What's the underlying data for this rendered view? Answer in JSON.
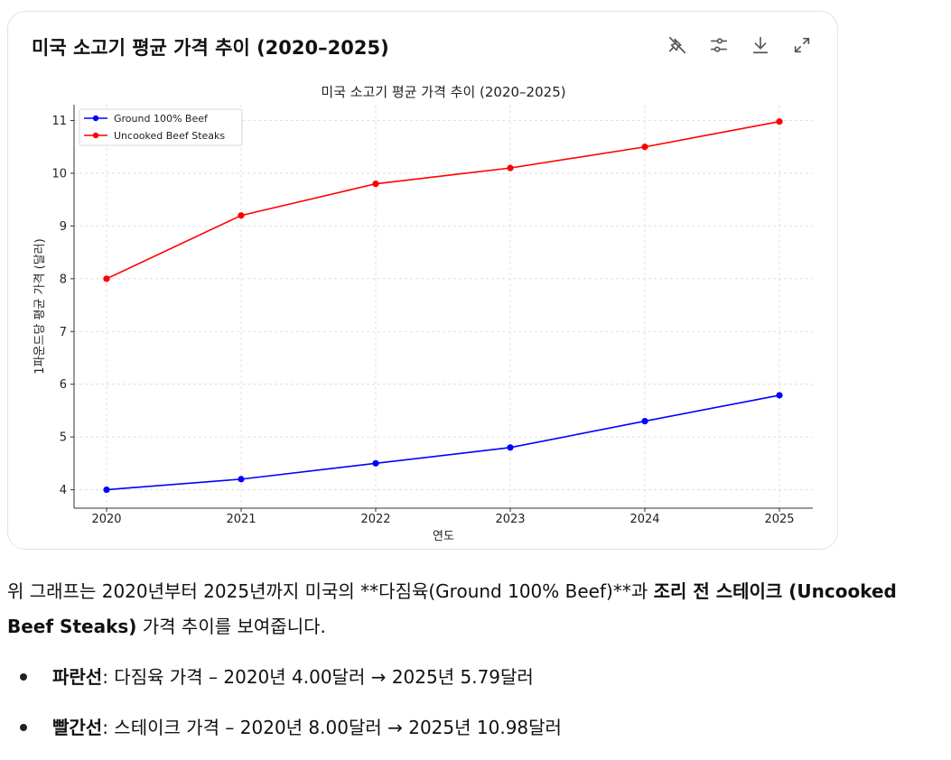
{
  "card": {
    "title": "미국 소고기 평균 가격 추이 (2020–2025)",
    "tools": [
      {
        "icon": "no-pin-icon"
      },
      {
        "icon": "sliders-icon"
      },
      {
        "icon": "download-icon"
      },
      {
        "icon": "expand-icon"
      }
    ]
  },
  "chart_data": {
    "type": "line",
    "title": "미국 소고기 평균 가격 추이 (2020–2025)",
    "xlabel": "연도",
    "ylabel": "1파운드당 평균 가격 (달러)",
    "categories": [
      "2020",
      "2021",
      "2022",
      "2023",
      "2024",
      "2025"
    ],
    "yticks": [
      "4",
      "5",
      "6",
      "7",
      "8",
      "9",
      "10",
      "11"
    ],
    "ylim": [
      3.65,
      11.3
    ],
    "grid": true,
    "legend_position": "top-left",
    "series": [
      {
        "name": "Ground 100% Beef",
        "color": "#0000ff",
        "values": [
          4.0,
          4.2,
          4.5,
          4.8,
          5.3,
          5.79
        ]
      },
      {
        "name": "Uncooked Beef Steaks",
        "color": "#ff0000",
        "values": [
          8.0,
          9.2,
          9.8,
          10.1,
          10.5,
          10.98
        ]
      }
    ]
  },
  "summary": {
    "p1": "위 그래프는 2020년부터 2025년까지 미국의 **다짐육(Ground 100% Beef)**과 ",
    "p_bold": "조리 전 스테이크 (Uncooked Beef Steaks)",
    "p2": " 가격 추이를 보여줍니다.",
    "bullets": [
      {
        "label": "파란선",
        "text": ": 다짐육 가격 – 2020년 4.00달러 → 2025년 5.79달러"
      },
      {
        "label": "빨간선",
        "text": ": 스테이크 가격 – 2020년 8.00달러 → 2025년 10.98달러"
      }
    ]
  }
}
